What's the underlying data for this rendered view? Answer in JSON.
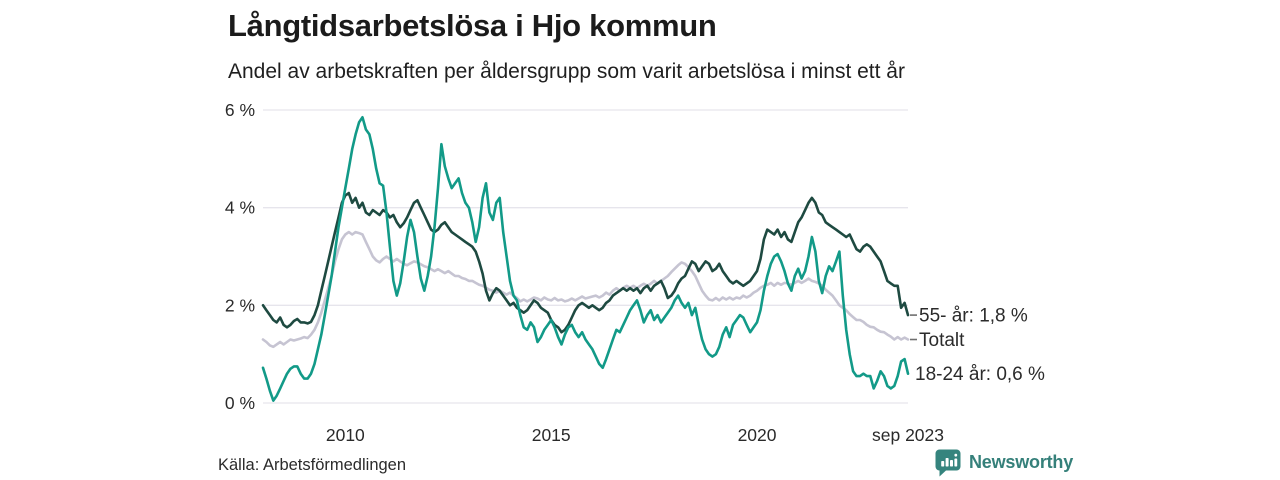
{
  "header": {
    "title": "Långtidsarbetslösa i Hjo kommun",
    "subtitle": "Andel av arbetskraften per åldersgrupp som varit arbetslösa i minst ett år"
  },
  "footer": {
    "source": "Källa: Arbetsförmedlingen",
    "brand": "Newsworthy"
  },
  "colors": {
    "background": "#ffffff",
    "grid": "#e6e5ec",
    "tick_text": "#2a2a2a",
    "label_text": "#2b2b2b",
    "connector": "#6f6f6f",
    "brand_teal": "#35807a",
    "series_55": "#1e4a41",
    "series_total": "#c6c4d2",
    "series_1824": "#129a88"
  },
  "chart_data": {
    "type": "line",
    "title": "Långtidsarbetslösa i Hjo kommun",
    "subtitle": "Andel av arbetskraften per åldersgrupp som varit arbetslösa i minst ett år",
    "x_start": "2008-01",
    "x_end": "2023-09",
    "freq": "monthly",
    "unit": "%",
    "ylim": [
      0,
      6
    ],
    "grid": "horizontal",
    "legend_position": "right-end-labels",
    "yticks": [
      {
        "value": 0,
        "label": "0 %"
      },
      {
        "value": 2,
        "label": "2 %"
      },
      {
        "value": 4,
        "label": "4 %"
      },
      {
        "value": 6,
        "label": "6 %"
      }
    ],
    "xticks": [
      {
        "year": 2010,
        "label": "2010"
      },
      {
        "year": 2015,
        "label": "2015"
      },
      {
        "year": 2020,
        "label": "2020"
      },
      {
        "year": 2023.667,
        "label": "sep 2023"
      }
    ],
    "series": [
      {
        "name": "55- år",
        "color": "#1e4a41",
        "end_label": "55- år: 1,8 %",
        "end_value": 1.8,
        "connector_dash": true,
        "values": [
          2.0,
          1.9,
          1.8,
          1.7,
          1.65,
          1.75,
          1.6,
          1.55,
          1.6,
          1.68,
          1.72,
          1.65,
          1.65,
          1.63,
          1.66,
          1.8,
          2.0,
          2.3,
          2.6,
          2.9,
          3.2,
          3.5,
          3.8,
          4.1,
          4.25,
          4.3,
          4.1,
          4.2,
          4.0,
          4.1,
          3.9,
          3.85,
          3.95,
          3.9,
          3.85,
          3.95,
          3.9,
          3.8,
          3.85,
          3.7,
          3.6,
          3.68,
          3.8,
          3.95,
          4.1,
          4.15,
          4.0,
          3.85,
          3.7,
          3.55,
          3.5,
          3.55,
          3.65,
          3.7,
          3.6,
          3.5,
          3.45,
          3.4,
          3.35,
          3.3,
          3.25,
          3.2,
          3.1,
          2.9,
          2.65,
          2.3,
          2.1,
          2.25,
          2.35,
          2.3,
          2.2,
          2.1,
          2.0,
          2.05,
          1.95,
          1.9,
          1.85,
          1.9,
          2.0,
          2.1,
          2.05,
          1.95,
          1.9,
          1.85,
          1.7,
          1.6,
          1.55,
          1.45,
          1.5,
          1.6,
          1.75,
          1.9,
          2.0,
          2.05,
          2.0,
          1.95,
          2.0,
          1.95,
          1.9,
          1.95,
          2.05,
          2.1,
          2.2,
          2.25,
          2.3,
          2.35,
          2.3,
          2.35,
          2.3,
          2.35,
          2.25,
          2.35,
          2.4,
          2.3,
          2.4,
          2.45,
          2.5,
          2.35,
          2.15,
          2.2,
          2.3,
          2.45,
          2.55,
          2.6,
          2.75,
          2.9,
          2.85,
          2.7,
          2.8,
          2.9,
          2.85,
          2.7,
          2.75,
          2.85,
          2.7,
          2.6,
          2.5,
          2.45,
          2.5,
          2.45,
          2.4,
          2.45,
          2.5,
          2.6,
          2.7,
          2.95,
          3.35,
          3.55,
          3.5,
          3.45,
          3.55,
          3.4,
          3.5,
          3.35,
          3.3,
          3.5,
          3.7,
          3.8,
          3.95,
          4.1,
          4.2,
          4.1,
          3.9,
          3.85,
          3.7,
          3.65,
          3.6,
          3.55,
          3.5,
          3.45,
          3.4,
          3.45,
          3.3,
          3.15,
          3.1,
          3.2,
          3.25,
          3.2,
          3.1,
          3.0,
          2.9,
          2.7,
          2.5,
          2.45,
          2.4,
          2.4,
          1.95,
          2.05,
          1.8
        ]
      },
      {
        "name": "Totalt",
        "color": "#c6c4d2",
        "end_label": "Totalt",
        "end_value": 1.3,
        "connector_dash": true,
        "values": [
          1.3,
          1.25,
          1.18,
          1.15,
          1.2,
          1.25,
          1.2,
          1.25,
          1.3,
          1.28,
          1.3,
          1.32,
          1.35,
          1.33,
          1.4,
          1.5,
          1.65,
          1.85,
          2.1,
          2.35,
          2.6,
          2.9,
          3.15,
          3.35,
          3.45,
          3.5,
          3.45,
          3.5,
          3.48,
          3.45,
          3.3,
          3.15,
          3.0,
          2.92,
          2.88,
          2.95,
          3.0,
          2.95,
          2.9,
          2.95,
          2.9,
          2.85,
          2.82,
          2.86,
          2.9,
          2.88,
          2.84,
          2.8,
          2.78,
          2.74,
          2.7,
          2.74,
          2.7,
          2.66,
          2.7,
          2.65,
          2.6,
          2.6,
          2.56,
          2.54,
          2.5,
          2.5,
          2.46,
          2.42,
          2.4,
          2.36,
          2.32,
          2.3,
          2.26,
          2.3,
          2.26,
          2.22,
          2.26,
          2.2,
          2.15,
          2.08,
          2.12,
          2.08,
          2.12,
          2.16,
          2.14,
          2.1,
          2.16,
          2.12,
          2.1,
          2.15,
          2.1,
          2.12,
          2.08,
          2.1,
          2.14,
          2.1,
          2.14,
          2.18,
          2.14,
          2.16,
          2.18,
          2.2,
          2.16,
          2.2,
          2.26,
          2.22,
          2.3,
          2.35,
          2.3,
          2.36,
          2.4,
          2.36,
          2.4,
          2.35,
          2.4,
          2.44,
          2.4,
          2.44,
          2.5,
          2.44,
          2.5,
          2.55,
          2.6,
          2.68,
          2.75,
          2.82,
          2.88,
          2.85,
          2.78,
          2.7,
          2.6,
          2.45,
          2.3,
          2.2,
          2.12,
          2.1,
          2.15,
          2.1,
          2.16,
          2.12,
          2.16,
          2.12,
          2.16,
          2.14,
          2.2,
          2.16,
          2.2,
          2.26,
          2.3,
          2.36,
          2.4,
          2.42,
          2.46,
          2.4,
          2.46,
          2.42,
          2.46,
          2.45,
          2.42,
          2.46,
          2.5,
          2.46,
          2.5,
          2.55,
          2.5,
          2.48,
          2.45,
          2.4,
          2.32,
          2.26,
          2.2,
          2.1,
          2.0,
          1.95,
          1.9,
          1.82,
          1.76,
          1.7,
          1.7,
          1.66,
          1.6,
          1.56,
          1.55,
          1.5,
          1.46,
          1.45,
          1.4,
          1.36,
          1.3,
          1.35,
          1.3,
          1.34,
          1.3
        ]
      },
      {
        "name": "18-24 år",
        "color": "#129a88",
        "end_label": "18-24 år: 0,6 %",
        "end_value": 0.6,
        "connector_dash": false,
        "values": [
          0.72,
          0.5,
          0.25,
          0.05,
          0.15,
          0.3,
          0.45,
          0.6,
          0.7,
          0.75,
          0.75,
          0.6,
          0.5,
          0.5,
          0.6,
          0.8,
          1.1,
          1.4,
          1.8,
          2.2,
          2.6,
          3.1,
          3.6,
          4.0,
          4.4,
          4.8,
          5.2,
          5.5,
          5.75,
          5.85,
          5.6,
          5.5,
          5.2,
          4.8,
          4.5,
          4.45,
          3.9,
          3.2,
          2.5,
          2.2,
          2.45,
          2.9,
          3.4,
          3.75,
          3.5,
          3.0,
          2.55,
          2.3,
          2.6,
          3.0,
          3.6,
          4.4,
          5.3,
          4.85,
          4.6,
          4.4,
          4.5,
          4.6,
          4.3,
          4.1,
          4.0,
          3.7,
          3.3,
          3.6,
          4.2,
          4.5,
          3.9,
          3.75,
          4.1,
          4.2,
          3.5,
          3.0,
          2.5,
          2.2,
          2.1,
          1.8,
          1.55,
          1.5,
          1.65,
          1.55,
          1.25,
          1.35,
          1.5,
          1.6,
          1.7,
          1.55,
          1.35,
          1.2,
          1.4,
          1.55,
          1.6,
          1.45,
          1.35,
          1.45,
          1.3,
          1.2,
          1.1,
          0.95,
          0.8,
          0.72,
          0.9,
          1.1,
          1.3,
          1.5,
          1.45,
          1.6,
          1.75,
          1.9,
          2.0,
          2.1,
          1.9,
          1.65,
          1.8,
          1.9,
          1.7,
          1.8,
          1.65,
          1.75,
          1.85,
          1.95,
          2.1,
          2.2,
          2.05,
          1.95,
          2.05,
          1.8,
          1.95,
          1.6,
          1.3,
          1.1,
          1.0,
          0.95,
          1.0,
          1.15,
          1.4,
          1.55,
          1.35,
          1.6,
          1.7,
          1.8,
          1.75,
          1.6,
          1.45,
          1.55,
          1.65,
          1.9,
          2.3,
          2.6,
          2.85,
          3.0,
          3.05,
          2.9,
          2.7,
          2.45,
          2.3,
          2.6,
          2.75,
          2.55,
          2.7,
          3.0,
          3.4,
          3.1,
          2.5,
          2.25,
          2.6,
          2.8,
          2.7,
          2.9,
          3.1,
          2.2,
          1.5,
          1.0,
          0.65,
          0.55,
          0.55,
          0.6,
          0.55,
          0.55,
          0.3,
          0.45,
          0.65,
          0.55,
          0.35,
          0.3,
          0.35,
          0.55,
          0.85,
          0.9,
          0.6
        ]
      }
    ]
  }
}
